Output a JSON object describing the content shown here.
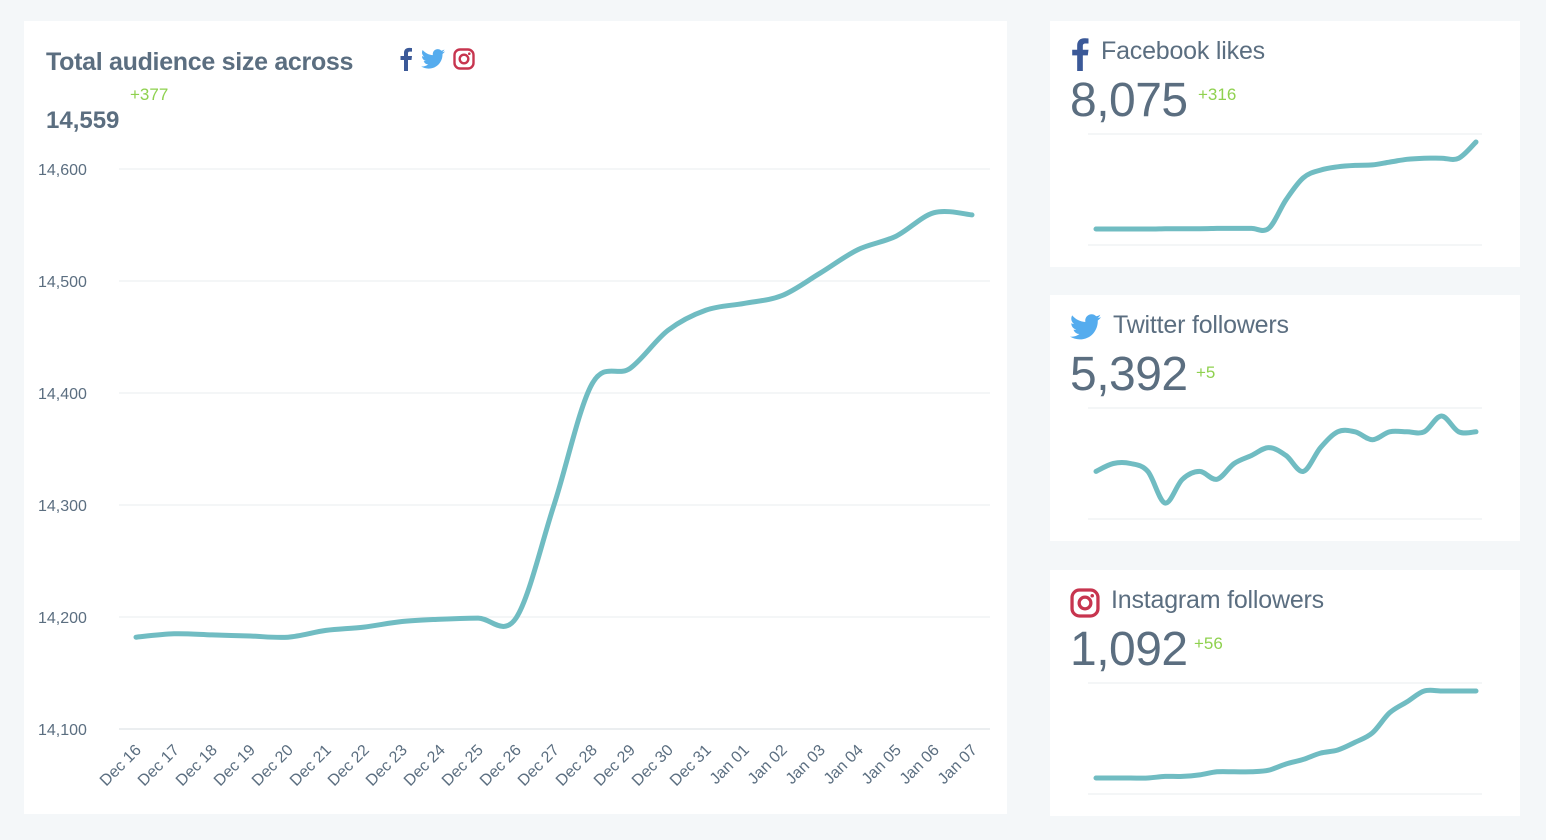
{
  "colors": {
    "line": "#70bcc2",
    "text": "#5b6e80",
    "positive": "#8fd14f",
    "grid": "#e8ecef",
    "facebook": "#3b5998",
    "twitter": "#55acee",
    "instagram": "#c7354f"
  },
  "main": {
    "title": "Total audience size across",
    "value": "14,559",
    "delta": "+377",
    "icons": [
      "facebook-icon",
      "twitter-icon",
      "instagram-icon"
    ]
  },
  "chart_data": [
    {
      "type": "line",
      "name": "total-audience",
      "x": [
        "Dec 16",
        "Dec 17",
        "Dec 18",
        "Dec 19",
        "Dec 20",
        "Dec 21",
        "Dec 22",
        "Dec 23",
        "Dec 24",
        "Dec 25",
        "Dec 26",
        "Dec 27",
        "Dec 28",
        "Dec 29",
        "Dec 30",
        "Dec 31",
        "Jan 01",
        "Jan 02",
        "Jan 03",
        "Jan 04",
        "Jan 05",
        "Jan 06",
        "Jan 07"
      ],
      "values": [
        14182,
        14185,
        14184,
        14183,
        14182,
        14188,
        14191,
        14196,
        14198,
        14199,
        14199,
        14300,
        14408,
        14422,
        14456,
        14474,
        14480,
        14487,
        14507,
        14528,
        14540,
        14561,
        14559
      ],
      "yticks": [
        14100,
        14200,
        14300,
        14400,
        14500,
        14600
      ],
      "ylim": [
        14100,
        14600
      ],
      "grid": true
    },
    {
      "type": "line",
      "name": "facebook-likes",
      "values": [
        7759,
        7759,
        7759,
        7759,
        7760,
        7760,
        7760,
        7761,
        7761,
        7761,
        7761,
        7865,
        7945,
        7973,
        7985,
        7990,
        7992,
        8002,
        8012,
        8016,
        8016,
        8016,
        8075
      ],
      "grid": true
    },
    {
      "type": "line",
      "name": "twitter-followers",
      "values": [
        5387,
        5388,
        5388,
        5387,
        5383,
        5386,
        5387,
        5386,
        5388,
        5389,
        5390,
        5389,
        5387,
        5390,
        5392,
        5392,
        5391,
        5392,
        5392,
        5392,
        5394,
        5392,
        5392
      ],
      "grid": true
    },
    {
      "type": "line",
      "name": "instagram-followers",
      "values": [
        1036,
        1036,
        1036,
        1036,
        1037,
        1037,
        1038,
        1040,
        1040,
        1040,
        1041,
        1045,
        1048,
        1052,
        1054,
        1059,
        1065,
        1078,
        1085,
        1092,
        1092,
        1092,
        1092
      ],
      "grid": true
    }
  ],
  "facebook": {
    "title": "Facebook likes",
    "value": "8,075",
    "delta": "+316"
  },
  "twitter": {
    "title": "Twitter followers",
    "value": "5,392",
    "delta": "+5"
  },
  "instagram": {
    "title": "Instagram followers",
    "value": "1,092",
    "delta": "+56"
  }
}
